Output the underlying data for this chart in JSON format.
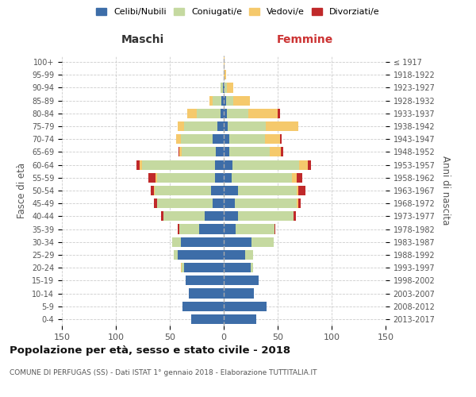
{
  "age_groups": [
    "0-4",
    "5-9",
    "10-14",
    "15-19",
    "20-24",
    "25-29",
    "30-34",
    "35-39",
    "40-44",
    "45-49",
    "50-54",
    "55-59",
    "60-64",
    "65-69",
    "70-74",
    "75-79",
    "80-84",
    "85-89",
    "90-94",
    "95-99",
    "100+"
  ],
  "birth_years": [
    "2013-2017",
    "2008-2012",
    "2003-2007",
    "1998-2002",
    "1993-1997",
    "1988-1992",
    "1983-1987",
    "1978-1982",
    "1973-1977",
    "1968-1972",
    "1963-1967",
    "1958-1962",
    "1953-1957",
    "1948-1952",
    "1943-1947",
    "1938-1942",
    "1933-1937",
    "1928-1932",
    "1923-1927",
    "1918-1922",
    "≤ 1917"
  ],
  "males": {
    "celibi": [
      30,
      38,
      32,
      35,
      37,
      43,
      40,
      23,
      18,
      10,
      12,
      8,
      8,
      7,
      10,
      6,
      3,
      2,
      1,
      0,
      0
    ],
    "coniugati": [
      0,
      0,
      0,
      0,
      2,
      3,
      8,
      18,
      38,
      52,
      52,
      54,
      68,
      32,
      30,
      31,
      22,
      8,
      2,
      0,
      0
    ],
    "vedovi": [
      0,
      0,
      0,
      0,
      1,
      0,
      0,
      0,
      0,
      0,
      1,
      1,
      2,
      2,
      4,
      6,
      9,
      3,
      0,
      0,
      0
    ],
    "divorziati": [
      0,
      0,
      0,
      0,
      0,
      0,
      0,
      2,
      2,
      3,
      3,
      7,
      3,
      1,
      0,
      0,
      0,
      0,
      0,
      0,
      0
    ]
  },
  "females": {
    "celibi": [
      30,
      40,
      28,
      32,
      25,
      20,
      26,
      11,
      13,
      10,
      13,
      7,
      8,
      5,
      5,
      4,
      3,
      2,
      1,
      0,
      0
    ],
    "coniugati": [
      0,
      0,
      0,
      0,
      2,
      7,
      20,
      36,
      52,
      58,
      55,
      56,
      62,
      38,
      33,
      35,
      20,
      7,
      2,
      0,
      0
    ],
    "vedovi": [
      0,
      0,
      0,
      0,
      0,
      0,
      0,
      0,
      0,
      1,
      1,
      5,
      8,
      10,
      14,
      30,
      27,
      15,
      6,
      2,
      1
    ],
    "divorziati": [
      0,
      0,
      0,
      0,
      0,
      0,
      0,
      1,
      2,
      2,
      7,
      5,
      3,
      2,
      2,
      0,
      2,
      0,
      0,
      0,
      0
    ]
  },
  "colors": {
    "celibi": "#3d6da8",
    "coniugati": "#c5d9a0",
    "vedovi": "#f5c96c",
    "divorziati": "#c0292a"
  },
  "title": "Popolazione per età, sesso e stato civile - 2018",
  "subtitle": "COMUNE DI PERFUGAS (SS) - Dati ISTAT 1° gennaio 2018 - Elaborazione TUTTITALIA.IT",
  "xlabel_left": "Maschi",
  "xlabel_right": "Femmine",
  "ylabel_left": "Fasce di età",
  "ylabel_right": "Anni di nascita",
  "xlim": 150,
  "legend_labels": [
    "Celibi/Nubili",
    "Coniugati/e",
    "Vedovi/e",
    "Divorziati/e"
  ],
  "bg_color": "#ffffff",
  "grid_color": "#cccccc"
}
